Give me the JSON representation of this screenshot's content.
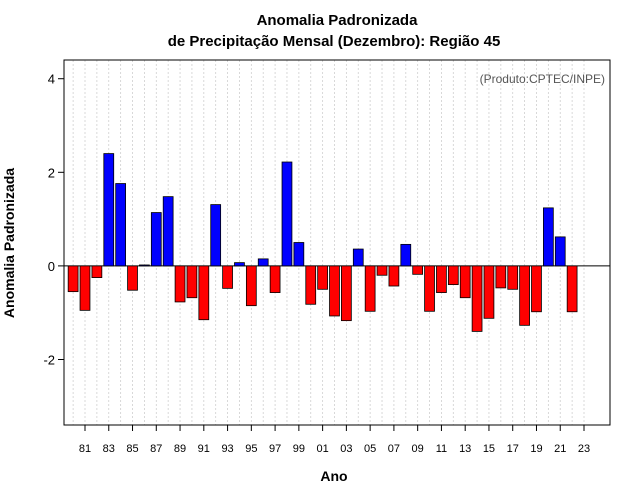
{
  "chart_data": {
    "type": "bar",
    "title_line1": "Anomalia Padronizada",
    "title_line2": "de Precipitação Mensal (Dezembro): Região 45",
    "xlabel": "Ano",
    "ylabel": "Anomalia Padronizada",
    "source": "(Produto:CPTEC/INPE)",
    "ylim": [
      -3.4,
      4.4
    ],
    "yticks": [
      -2,
      0,
      2,
      4
    ],
    "categories": [
      "80",
      "81",
      "82",
      "83",
      "84",
      "85",
      "86",
      "87",
      "88",
      "89",
      "90",
      "91",
      "92",
      "93",
      "94",
      "95",
      "96",
      "97",
      "98",
      "99",
      "00",
      "01",
      "02",
      "03",
      "04",
      "05",
      "06",
      "07",
      "08",
      "09",
      "10",
      "11",
      "12",
      "13",
      "14",
      "15",
      "16",
      "17",
      "18",
      "19",
      "20",
      "21",
      "22",
      "23"
    ],
    "xtick_labels": [
      "81",
      "83",
      "85",
      "87",
      "89",
      "91",
      "93",
      "95",
      "97",
      "99",
      "01",
      "03",
      "05",
      "07",
      "09",
      "11",
      "13",
      "15",
      "17",
      "19",
      "21",
      "23"
    ],
    "values": [
      -0.55,
      -0.95,
      -0.25,
      2.4,
      1.76,
      -0.52,
      0.02,
      1.14,
      1.48,
      -0.77,
      -0.68,
      -1.15,
      1.31,
      -0.48,
      0.07,
      -0.85,
      0.15,
      -0.57,
      2.22,
      0.5,
      -0.82,
      -0.5,
      -1.07,
      -1.17,
      0.36,
      -0.97,
      -0.2,
      -0.43,
      0.46,
      -0.18,
      -0.97,
      -0.57,
      -0.4,
      -0.68,
      -1.4,
      -1.12,
      -0.47,
      -0.5,
      -1.27,
      -0.98,
      1.24,
      0.62,
      -0.98,
      0.0
    ],
    "colors": {
      "positive": "#0000ff",
      "negative": "#ff0000"
    }
  }
}
